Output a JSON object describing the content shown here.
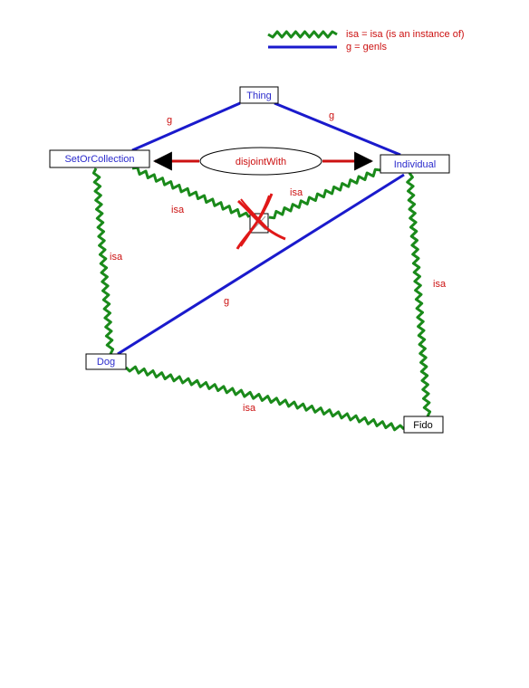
{
  "legend": {
    "isa_label": "isa = isa (is an instance  of)",
    "genls_label": "g = genls"
  },
  "nodes": {
    "thing": "Thing",
    "set_or_collection": "SetOrCollection",
    "individual": "Individual",
    "dog": "Dog",
    "fido": "Fido",
    "disjoint_with": "disjointWith"
  },
  "edge_labels": {
    "genls": "g",
    "isa": "isa"
  },
  "colors": {
    "isa": "#1a8a1a",
    "genls": "#1a1acc",
    "label_red": "#cc1111",
    "arrow_red": "#cc1111",
    "node_text_blue": "#2a2acc",
    "node_text_black": "#000000"
  }
}
